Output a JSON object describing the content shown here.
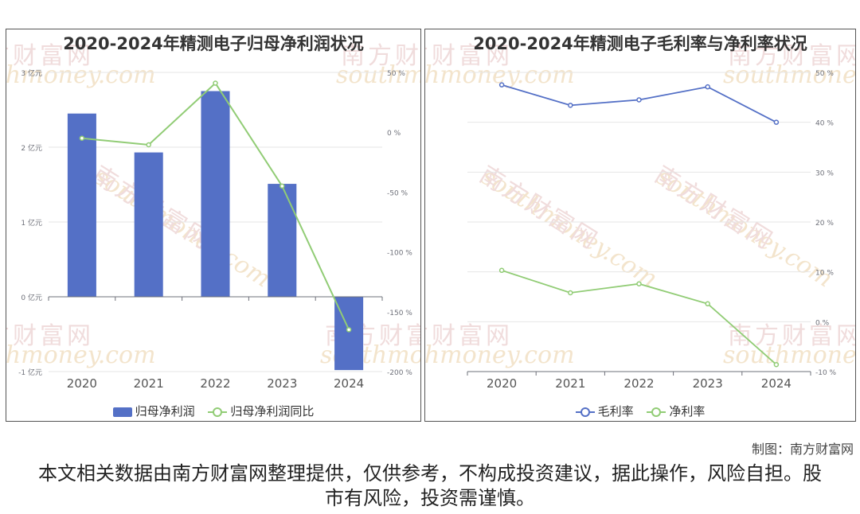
{
  "left_chart": {
    "title": "2020-2024年精测电子归母净利润状况",
    "chart_data": {
      "type": "bar",
      "categories": [
        "2020",
        "2021",
        "2022",
        "2023",
        "2024"
      ],
      "series": [
        {
          "name": "归母净利润",
          "type": "bar",
          "axis": "left",
          "values": [
            2.45,
            1.93,
            2.75,
            1.51,
            -0.98
          ],
          "color": "#5470c6"
        },
        {
          "name": "归母净利润同比",
          "type": "line",
          "axis": "right",
          "values": [
            -5,
            -10.5,
            41,
            -45,
            -165
          ],
          "color": "#91cc75"
        }
      ],
      "left_axis": {
        "ticks": [
          "3 亿元",
          "2 亿元",
          "1 亿元",
          "0 亿元",
          "-1 亿元"
        ],
        "range": [
          -1,
          3
        ]
      },
      "right_axis": {
        "ticks": [
          "50 %",
          "0 %",
          "-50 %",
          "-100 %",
          "-150 %",
          "-200 %"
        ],
        "range": [
          -200,
          50
        ]
      }
    }
  },
  "right_chart": {
    "title": "2020-2024年精测电子毛利率与净利率状况",
    "chart_data": {
      "type": "line",
      "categories": [
        "2020",
        "2021",
        "2022",
        "2023",
        "2024"
      ],
      "series": [
        {
          "name": "毛利率",
          "values": [
            47.5,
            43.4,
            44.5,
            47.1,
            40.0
          ],
          "color": "#5470c6"
        },
        {
          "name": "净利率",
          "values": [
            10.3,
            5.8,
            7.6,
            3.6,
            -8.6
          ],
          "color": "#91cc75"
        }
      ],
      "right_axis": {
        "ticks": [
          "50 %",
          "40 %",
          "30 %",
          "20 %",
          "10 %",
          "0 %",
          "-10 %"
        ],
        "range": [
          -10,
          50
        ]
      }
    }
  },
  "watermark": {
    "cn": "南方财富网",
    "en": "southmoney.com"
  },
  "credit": "制图：南方财富网",
  "disclaimer": "本文相关数据由南方财富网整理提供，仅供参考，不构成投资建议，据此操作，风险自担。股市有风险，投资需谨慎。"
}
